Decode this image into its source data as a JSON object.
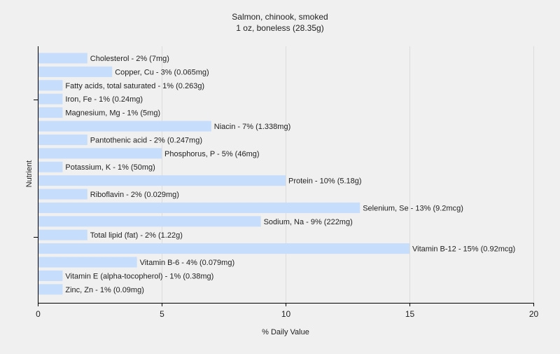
{
  "chart_data": {
    "type": "bar",
    "orientation": "horizontal",
    "title": "Salmon, chinook, smoked",
    "subtitle": "1 oz, boneless (28.35g)",
    "xlabel": "% Daily Value",
    "ylabel": "Nutrient",
    "xlim": [
      0,
      20
    ],
    "xticks": [
      0,
      5,
      10,
      15,
      20
    ],
    "grid": true,
    "bar_color": "#c6ddfb",
    "background_color": "#f0f0f0",
    "bars": [
      {
        "label": "Cholesterol - 2% (7mg)",
        "value": 2
      },
      {
        "label": "Copper, Cu - 3% (0.065mg)",
        "value": 3
      },
      {
        "label": "Fatty acids, total saturated - 1% (0.263g)",
        "value": 1
      },
      {
        "label": "Iron, Fe - 1% (0.24mg)",
        "value": 1
      },
      {
        "label": "Magnesium, Mg - 1% (5mg)",
        "value": 1
      },
      {
        "label": "Niacin - 7% (1.338mg)",
        "value": 7
      },
      {
        "label": "Pantothenic acid - 2% (0.247mg)",
        "value": 2
      },
      {
        "label": "Phosphorus, P - 5% (46mg)",
        "value": 5
      },
      {
        "label": "Potassium, K - 1% (50mg)",
        "value": 1
      },
      {
        "label": "Protein - 10% (5.18g)",
        "value": 10
      },
      {
        "label": "Riboflavin - 2% (0.029mg)",
        "value": 2
      },
      {
        "label": "Selenium, Se - 13% (9.2mcg)",
        "value": 13
      },
      {
        "label": "Sodium, Na - 9% (222mg)",
        "value": 9
      },
      {
        "label": "Total lipid (fat) - 2% (1.22g)",
        "value": 2
      },
      {
        "label": "Vitamin B-12 - 15% (0.92mcg)",
        "value": 15
      },
      {
        "label": "Vitamin B-6 - 4% (0.079mg)",
        "value": 4
      },
      {
        "label": "Vitamin E (alpha-tocopherol) - 1% (0.38mg)",
        "value": 1
      },
      {
        "label": "Zinc, Zn - 1% (0.09mg)",
        "value": 1
      }
    ]
  }
}
